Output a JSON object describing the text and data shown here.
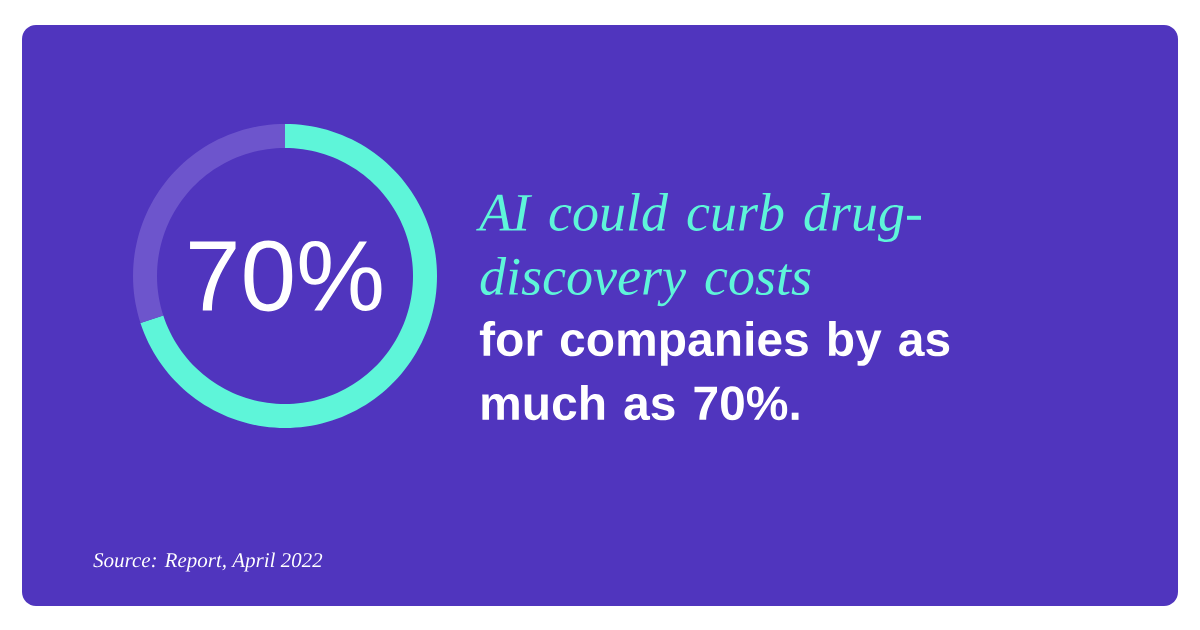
{
  "chart_data": {
    "type": "donut",
    "title": "AI could curb drug-discovery costs",
    "subtitle": "for companies by as much as 70%.",
    "categories": [
      null,
      null
    ],
    "values": [
      70,
      30
    ],
    "colors": [
      "#5ef5d9",
      "#6d55cc"
    ],
    "value_labels": [
      "70%",
      null
    ],
    "annotations": [
      "Source: Report, April 2022"
    ]
  }
}
